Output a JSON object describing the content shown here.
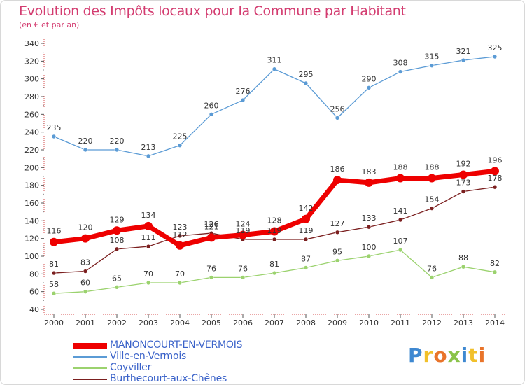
{
  "title": "Evolution des Impôts locaux pour la Commune par Habitant",
  "subtitle": "(en € et par an)",
  "logo": {
    "letters": [
      "P",
      "r",
      "o",
      "x",
      "i",
      "t",
      "i"
    ],
    "colors": [
      "#3e88d1",
      "#f1c02b",
      "#e9742a",
      "#8bc34a",
      "#3e88d1",
      "#f1c02b",
      "#e9742a"
    ]
  },
  "chart_data": {
    "type": "line",
    "x": [
      "2000",
      "2001",
      "2002",
      "2003",
      "2004",
      "2005",
      "2006",
      "2007",
      "2008",
      "2009",
      "2010",
      "2011",
      "2012",
      "2013",
      "2014"
    ],
    "ylim": [
      40,
      340
    ],
    "yticks": [
      40,
      60,
      80,
      100,
      120,
      140,
      160,
      180,
      200,
      220,
      240,
      260,
      280,
      300,
      320,
      340
    ],
    "grid": false,
    "legend_position": "bottom-left",
    "series": [
      {
        "name": "MANONCOURT-EN-VERMOIS",
        "color": "#ee0000",
        "thick": true,
        "values": [
          116,
          120,
          129,
          134,
          112,
          121,
          124,
          128,
          142,
          186,
          183,
          188,
          188,
          192,
          196
        ],
        "labels": [
          "116",
          "120",
          "129",
          "134",
          "112",
          "121",
          "124",
          "128",
          "142",
          "186",
          "183",
          "188",
          "188",
          "192",
          "196"
        ]
      },
      {
        "name": "Ville-en-Vermois",
        "color": "#5b9bd5",
        "thick": false,
        "values": [
          235,
          220,
          220,
          213,
          225,
          260,
          276,
          311,
          295,
          256,
          290,
          308,
          315,
          321,
          325
        ],
        "labels": [
          "235",
          "220",
          "220",
          "213",
          "225",
          "260",
          "276",
          "311",
          "295",
          "256",
          "290",
          "308",
          "315",
          "321",
          "325"
        ]
      },
      {
        "name": "Coyviller",
        "color": "#9bd26e",
        "thick": false,
        "values": [
          58,
          60,
          65,
          70,
          70,
          76,
          76,
          81,
          87,
          95,
          100,
          107,
          76,
          88,
          82
        ],
        "labels": [
          "58",
          "60",
          "65",
          "70",
          "70",
          "76",
          "76",
          "81",
          "87",
          "95",
          "100",
          "107",
          "76",
          "88",
          "82"
        ]
      },
      {
        "name": "Burthecourt-aux-Chênes",
        "color": "#7b1f1f",
        "thick": false,
        "values": [
          81,
          83,
          108,
          111,
          123,
          126,
          119,
          119,
          119,
          127,
          133,
          141,
          154,
          173,
          178
        ],
        "labels": [
          "81",
          "83",
          "108",
          "111",
          "123",
          "126",
          "119",
          "119",
          "119",
          "127",
          "133",
          "141",
          "154",
          "173",
          "178"
        ]
      }
    ]
  }
}
